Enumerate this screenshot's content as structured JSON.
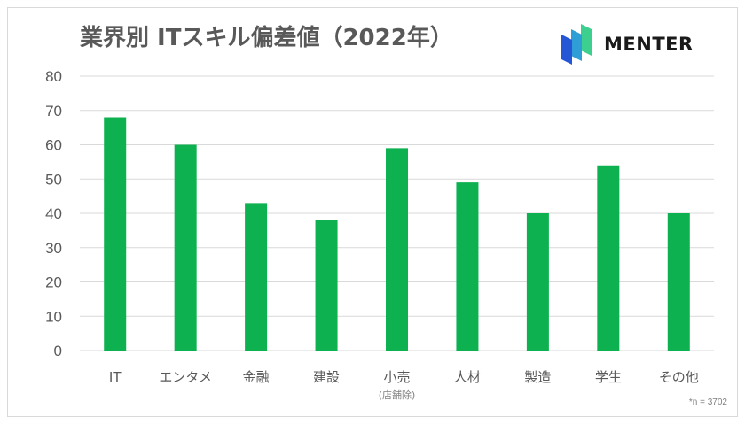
{
  "title": "業界別 ITスキル偏差値（2022年）",
  "logo": {
    "text": "MENTER",
    "icon": "menter-logo-icon"
  },
  "note": "*n = 3702",
  "colors": {
    "bar": "#0db150",
    "grid": "#d9d9d9",
    "text": "#595959"
  },
  "chart_data": {
    "type": "bar",
    "categories": [
      "IT",
      "エンタメ",
      "金融",
      "建設",
      "小売",
      "人材",
      "製造",
      "学生",
      "その他"
    ],
    "category_sublabels": [
      "",
      "",
      "",
      "",
      "(店舗除)",
      "",
      "",
      "",
      ""
    ],
    "values": [
      68,
      60,
      43,
      38,
      59,
      49,
      40,
      54,
      40
    ],
    "ylim": [
      0,
      80
    ],
    "yticks": [
      0,
      10,
      20,
      30,
      40,
      50,
      60,
      70,
      80
    ],
    "grid": true,
    "title": "業界別 ITスキル偏差値（2022年）"
  }
}
